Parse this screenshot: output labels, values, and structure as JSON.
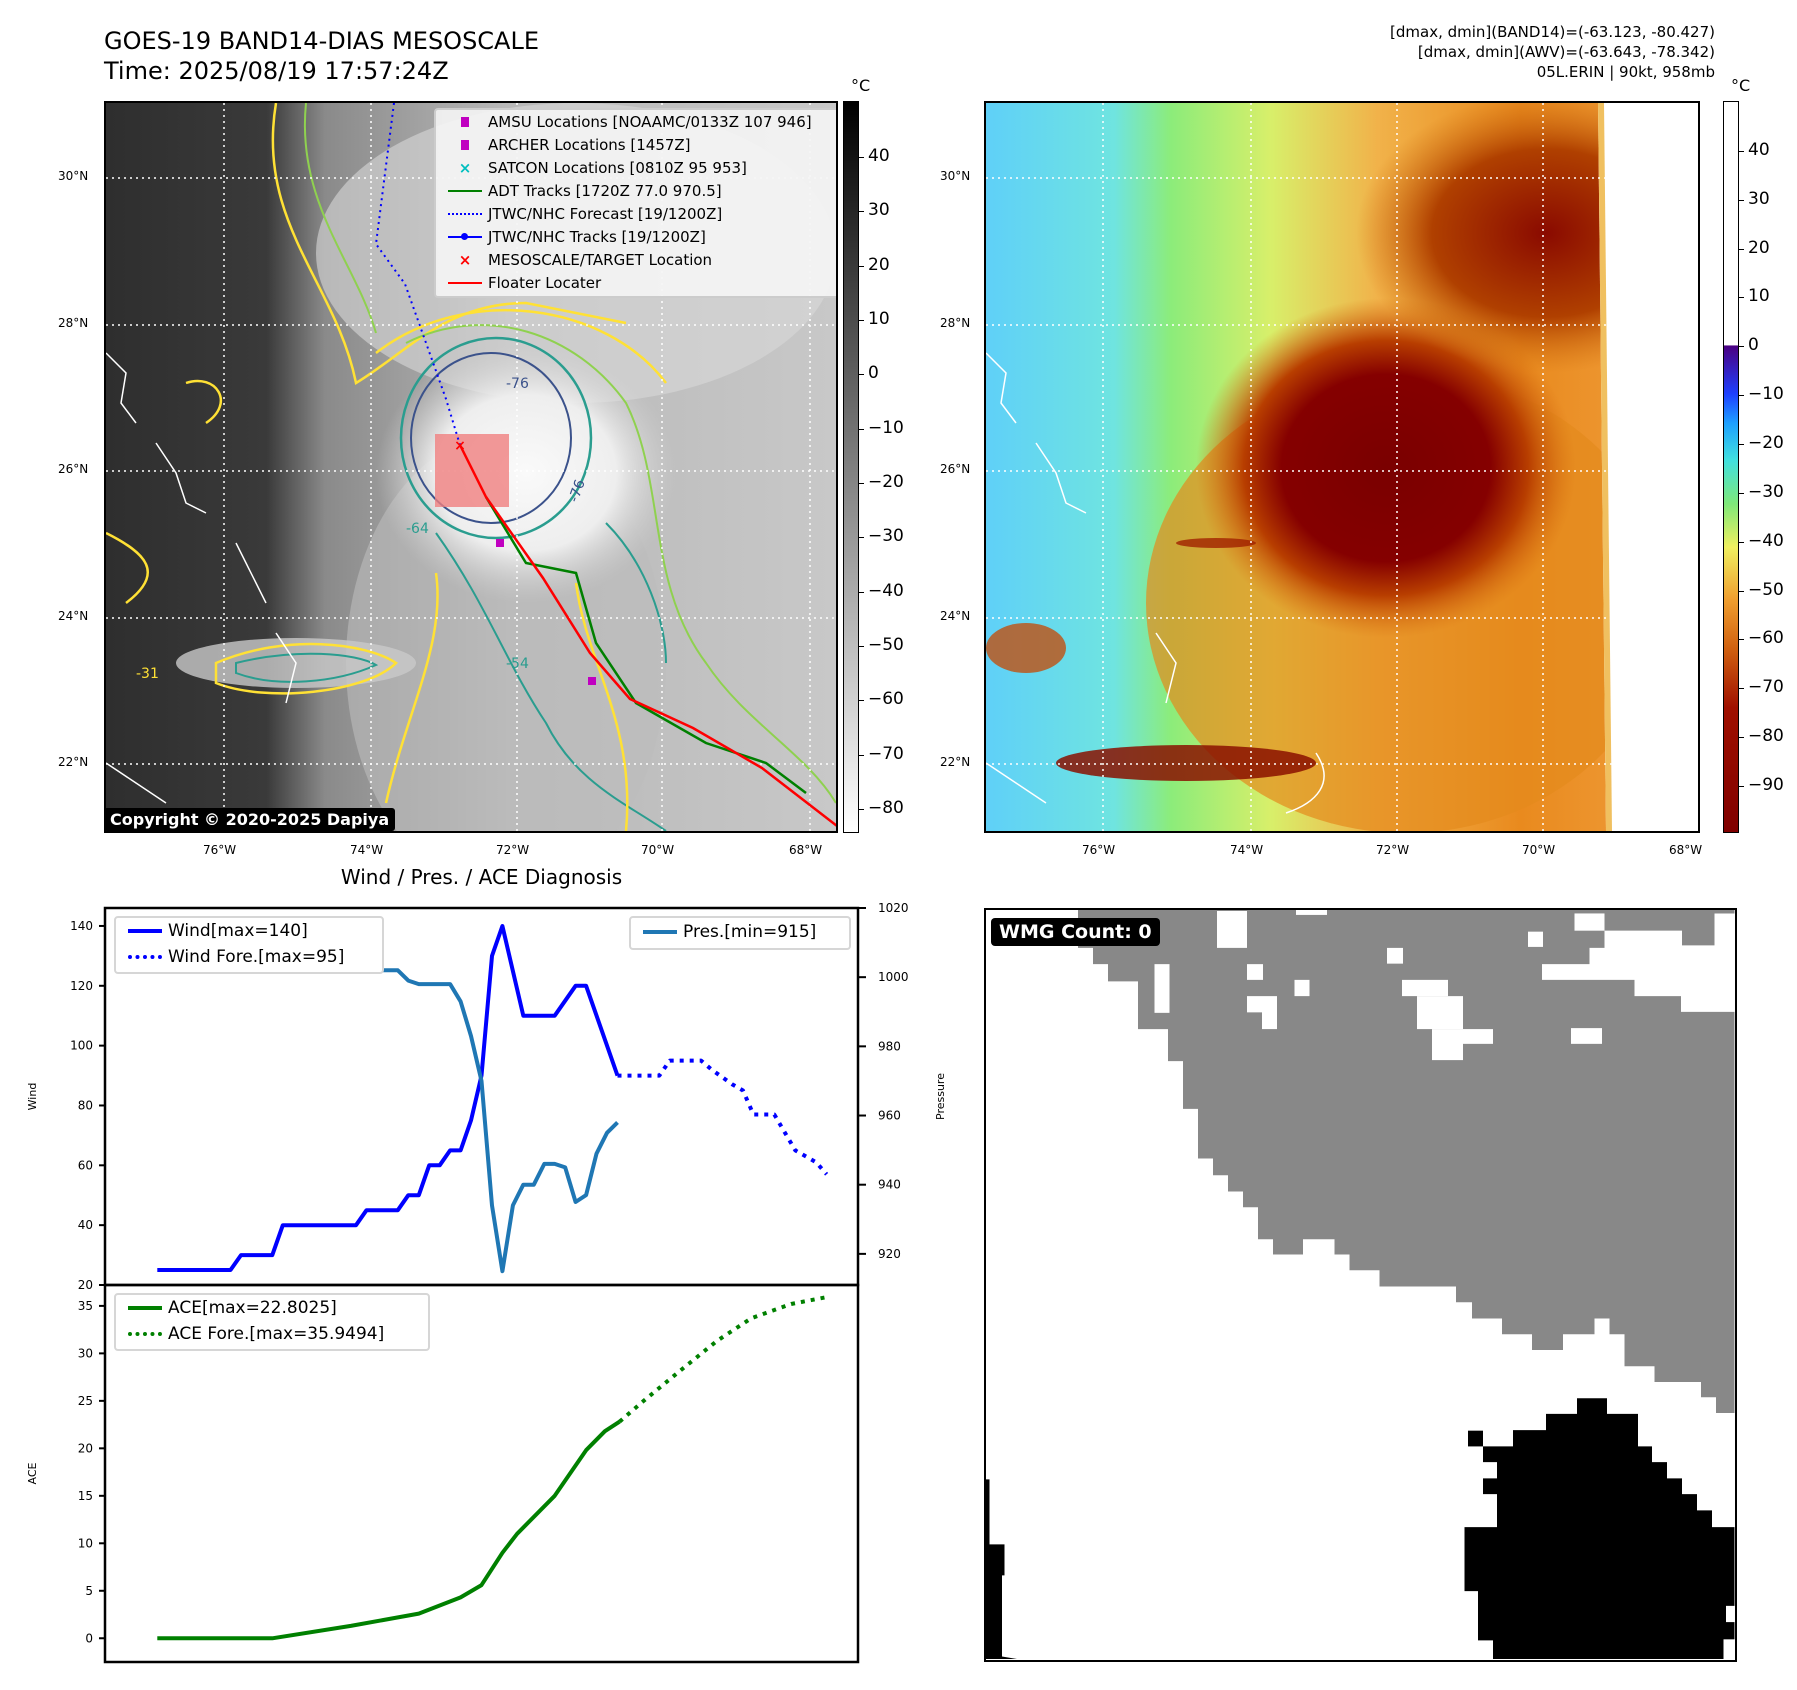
{
  "header": {
    "title": "GOES-19 BAND14-DIAS MESOSCALE",
    "time": "Time: 2025/08/19 17:57:24Z",
    "info_line1": "[dmax, dmin](BAND14)=(-63.123, -80.427)",
    "info_line2": "[dmax, dmin](AWV)=(-63.643, -78.342)",
    "info_line3": "05L.ERIN | 90kt, 958mb"
  },
  "map_left": {
    "lat_labels": [
      "30°N",
      "28°N",
      "26°N",
      "24°N",
      "22°N"
    ],
    "lon_labels": [
      "76°W",
      "74°W",
      "72°W",
      "70°W",
      "68°W"
    ],
    "contour_labels": [
      "-31",
      "-54",
      "-64",
      "-76",
      "-76"
    ],
    "copyright": "Copyright © 2020-2025 Dapiya",
    "legend": [
      {
        "label": "AMSU Locations [NOAAMC/0133Z 107 946]",
        "icon": "square-marker",
        "color": "#c000c0"
      },
      {
        "label": "ARCHER Locations [1457Z]",
        "icon": "square-marker",
        "color": "#c000c0"
      },
      {
        "label": "SATCON Locations [0810Z 95 953]",
        "icon": "x-marker",
        "color": "#00bfbf"
      },
      {
        "label": "ADT Tracks [1720Z 77.0 970.5]",
        "icon": "solid-line",
        "color": "#008000"
      },
      {
        "label": "JTWC/NHC Forecast [19/1200Z]",
        "icon": "dotted-line",
        "color": "#0000ff"
      },
      {
        "label": "JTWC/NHC Tracks [19/1200Z]",
        "icon": "line-dot",
        "color": "#0000ff"
      },
      {
        "label": "MESOSCALE/TARGET Location",
        "icon": "x-marker",
        "color": "#ff0000"
      },
      {
        "label": "Floater Locater",
        "icon": "solid-line",
        "color": "#ff0000"
      }
    ],
    "colorbar": {
      "unit": "°C",
      "ticks": [
        40,
        30,
        20,
        10,
        0,
        -10,
        -20,
        -30,
        -40,
        -50,
        -60,
        -70,
        -80
      ],
      "range": [
        -84.4,
        50.3
      ]
    }
  },
  "map_right": {
    "lat_labels": [
      "30°N",
      "28°N",
      "26°N",
      "24°N",
      "22°N"
    ],
    "lon_labels": [
      "76°W",
      "74°W",
      "72°W",
      "70°W",
      "68°W"
    ],
    "colorbar": {
      "unit": "°C",
      "ticks": [
        40,
        30,
        20,
        10,
        0,
        -10,
        -20,
        -30,
        -40,
        -50,
        -60,
        -70,
        -80,
        -90
      ],
      "range": [
        -99.6,
        50.2
      ]
    }
  },
  "wmg": {
    "label": "WMG Count: 0"
  },
  "chart_data": [
    {
      "type": "line",
      "title": "Wind / Pres. / ACE Diagnosis",
      "ylabel": "Wind",
      "ylabel_right": "Pressure",
      "ylim": [
        20,
        146
      ],
      "ylim_right": [
        911,
        1020
      ],
      "xlim": [
        -5,
        67
      ],
      "yticks": [
        140,
        120,
        100,
        80,
        60,
        40,
        20
      ],
      "yticks_right": [
        1020,
        1000,
        980,
        960,
        940,
        920
      ],
      "series": [
        {
          "name": "Wind[max=140]",
          "style": "solid",
          "color": "#0000ff",
          "axis": "left",
          "x": [
            0,
            7,
            8,
            11,
            12,
            19,
            20,
            23,
            24,
            25,
            26,
            27,
            28,
            29,
            30,
            31,
            32,
            33,
            35,
            38,
            40,
            41,
            44
          ],
          "y": [
            25,
            25,
            30,
            30,
            40,
            40,
            45,
            45,
            50,
            50,
            60,
            60,
            65,
            65,
            75,
            90,
            130,
            140,
            110,
            110,
            120,
            120,
            90
          ]
        },
        {
          "name": "Wind Fore.[max=95]",
          "style": "dotted",
          "color": "#0000ff",
          "axis": "left",
          "x": [
            44,
            48,
            49,
            52,
            53,
            55,
            56,
            57,
            59,
            61,
            63,
            64
          ],
          "y": [
            90,
            90,
            95,
            95,
            92,
            87,
            85,
            77,
            77,
            65,
            61,
            57
          ]
        },
        {
          "name": "Pres.[min=915]",
          "style": "solid",
          "color": "#1f77b4",
          "axis": "right",
          "x": [
            0,
            1,
            2,
            4,
            11,
            12,
            15,
            16,
            17,
            18,
            19,
            20,
            23,
            24,
            25,
            28,
            29,
            30,
            31,
            32,
            33,
            34,
            35,
            36,
            37,
            38,
            39,
            40,
            41,
            42,
            43,
            44
          ],
          "y": [
            1015,
            1015,
            1008,
            1006,
            1006,
            1004,
            1004,
            1006,
            1006,
            1004,
            1004,
            1002,
            1002,
            999,
            998,
            998,
            993,
            983,
            970,
            934,
            915,
            934,
            940,
            940,
            946,
            946,
            945,
            935,
            937,
            949,
            955,
            958
          ]
        }
      ]
    },
    {
      "type": "line",
      "ylabel": "ACE",
      "ylim": [
        -2.5,
        37.2
      ],
      "xlim": [
        -5,
        67
      ],
      "yticks": [
        35,
        30,
        25,
        20,
        15,
        10,
        5,
        0
      ],
      "series": [
        {
          "name": "ACE[max=22.8025]",
          "style": "solid",
          "color": "#008000",
          "x": [
            0,
            11,
            18.5,
            25,
            29,
            31,
            33,
            34.4,
            38,
            41,
            42.8,
            44.2
          ],
          "y": [
            0,
            0,
            1.3,
            2.6,
            4.3,
            5.6,
            9,
            11,
            15,
            19.8,
            21.8,
            22.8
          ]
        },
        {
          "name": "ACE Fore.[max=35.9494]",
          "style": "dotted",
          "color": "#008000",
          "x": [
            44.2,
            46.5,
            49.8,
            53.5,
            56.8,
            60.6,
            64.1
          ],
          "y": [
            22.8,
            25,
            28,
            31.3,
            33.7,
            35.2,
            35.95
          ]
        }
      ]
    }
  ]
}
